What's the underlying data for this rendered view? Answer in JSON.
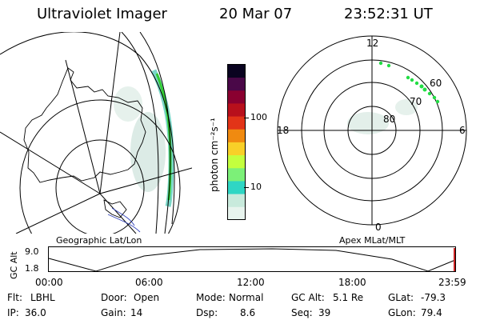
{
  "header": {
    "instrument": "Ultraviolet Imager",
    "date": "20 Mar 07",
    "time": "23:52:31 UT"
  },
  "geo_panel": {
    "label": "Geographic Lat/Lon"
  },
  "polar_panel": {
    "label": "Apex MLat/MLT",
    "mlt_labels": {
      "top": "12",
      "left": "18",
      "right": "6",
      "bottom": "0"
    },
    "lat_labels": [
      "60",
      "70",
      "80"
    ]
  },
  "colorbar": {
    "unit_label": "photon cm⁻²s⁻¹",
    "ticks": [
      "100",
      "10"
    ],
    "colors": [
      "#e8f4ee",
      "#c8eadc",
      "#2fd6c4",
      "#7cf078",
      "#c4ff3e",
      "#f8d028",
      "#f08a10",
      "#e23418",
      "#b8101c",
      "#8a0030",
      "#4a0848",
      "#0a0320"
    ]
  },
  "altitude_strip": {
    "axis_label": "GC Alt",
    "y_ticks": [
      "9.0",
      "1.8"
    ],
    "x_ticks": [
      "00:00",
      "06:00",
      "12:00",
      "18:00",
      "23:59"
    ]
  },
  "status": {
    "row1": [
      {
        "key": "Flt:",
        "value": "LBHL"
      },
      {
        "key": "Door:",
        "value": "Open"
      },
      {
        "key": "Mode:",
        "value": "Normal"
      },
      {
        "key": "GC Alt:",
        "value": "5.1 Re"
      },
      {
        "key": "GLat:",
        "value": "-79.3"
      }
    ],
    "row2": [
      {
        "key": "IP:",
        "value": "36.0"
      },
      {
        "key": "Gain:",
        "value": "14"
      },
      {
        "key": "Dsp:",
        "value": "8.6"
      },
      {
        "key": "Seq:",
        "value": "39"
      },
      {
        "key": "GLon:",
        "value": "79.4"
      }
    ]
  },
  "colors": {
    "aurora_green": "#33cc33",
    "marker_green": "#22dd44",
    "now_marker": "#cc2222",
    "faint_glow": "#dcebe6"
  }
}
